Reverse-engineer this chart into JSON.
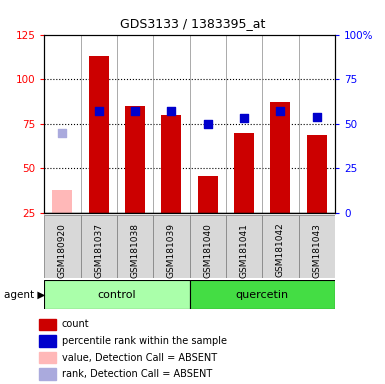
{
  "title": "GDS3133 / 1383395_at",
  "samples": [
    "GSM180920",
    "GSM181037",
    "GSM181038",
    "GSM181039",
    "GSM181040",
    "GSM181041",
    "GSM181042",
    "GSM181043"
  ],
  "groups": [
    "control",
    "control",
    "control",
    "control",
    "quercetin",
    "quercetin",
    "quercetin",
    "quercetin"
  ],
  "count_values": [
    null,
    113,
    85,
    80,
    46,
    70,
    87,
    69
  ],
  "count_absent": [
    38,
    null,
    null,
    null,
    null,
    null,
    null,
    null
  ],
  "rank_values": [
    null,
    57,
    57,
    57,
    50,
    53,
    57,
    54
  ],
  "rank_absent": [
    45,
    null,
    null,
    null,
    null,
    null,
    null,
    null
  ],
  "left_ylim": [
    25,
    125
  ],
  "left_yticks": [
    25,
    50,
    75,
    100,
    125
  ],
  "right_ylim": [
    0,
    100
  ],
  "right_yticks": [
    0,
    25,
    50,
    75,
    100
  ],
  "right_yticklabels": [
    "0",
    "25",
    "50",
    "75",
    "100%"
  ],
  "bar_color": "#cc0000",
  "bar_absent_color": "#ffb8b8",
  "dot_color": "#0000cc",
  "dot_absent_color": "#aaaadd",
  "control_color": "#aaffaa",
  "quercetin_color": "#44dd44",
  "bar_width": 0.55,
  "dot_size": 30,
  "legend_items": [
    {
      "label": "count",
      "color": "#cc0000"
    },
    {
      "label": "percentile rank within the sample",
      "color": "#0000cc"
    },
    {
      "label": "value, Detection Call = ABSENT",
      "color": "#ffb8b8"
    },
    {
      "label": "rank, Detection Call = ABSENT",
      "color": "#aaaadd"
    }
  ]
}
